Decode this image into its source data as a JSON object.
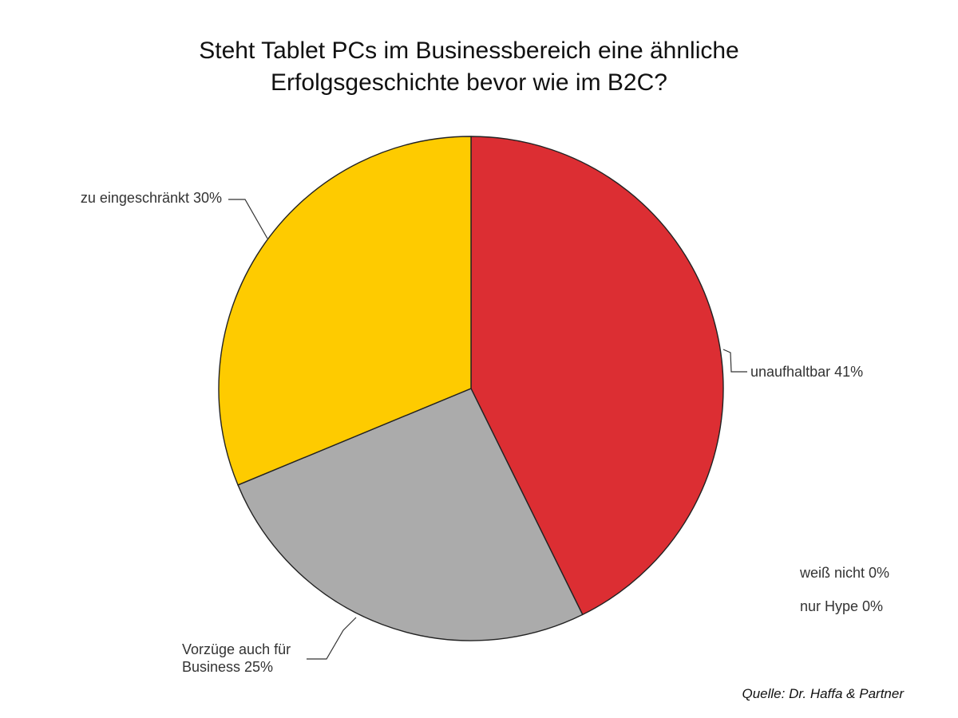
{
  "chart_data": {
    "type": "pie",
    "title_lines": [
      "Steht Tablet PCs im Businessbereich eine ähnliche",
      "Erfolgsgeschichte bevor wie im B2C?"
    ],
    "slices": [
      {
        "name": "unaufhaltbar",
        "value": 41,
        "label_lines": [
          "unaufhaltbar 41%"
        ],
        "color": "#dc2e33"
      },
      {
        "name": "Vorzüge auch für Business",
        "value": 25,
        "label_lines": [
          "Vorzüge auch für",
          "Business 25%"
        ],
        "color": "#ababab"
      },
      {
        "name": "zu eingeschränkt",
        "value": 30,
        "label_lines": [
          "zu eingeschränkt 30%"
        ],
        "color": "#fecb00"
      },
      {
        "name": "weiß nicht",
        "value": 0,
        "label_lines": [
          "weiß nicht 0%"
        ],
        "color": "#ffffff"
      },
      {
        "name": "nur Hype",
        "value": 0,
        "label_lines": [
          "nur Hype 0%"
        ],
        "color": "#ffffff"
      }
    ],
    "source": "Quelle: Dr. Haffa & Partner",
    "start_angle": "12 o'clock",
    "direction": "clockwise",
    "legend": "none (direct labels with leader lines)"
  }
}
